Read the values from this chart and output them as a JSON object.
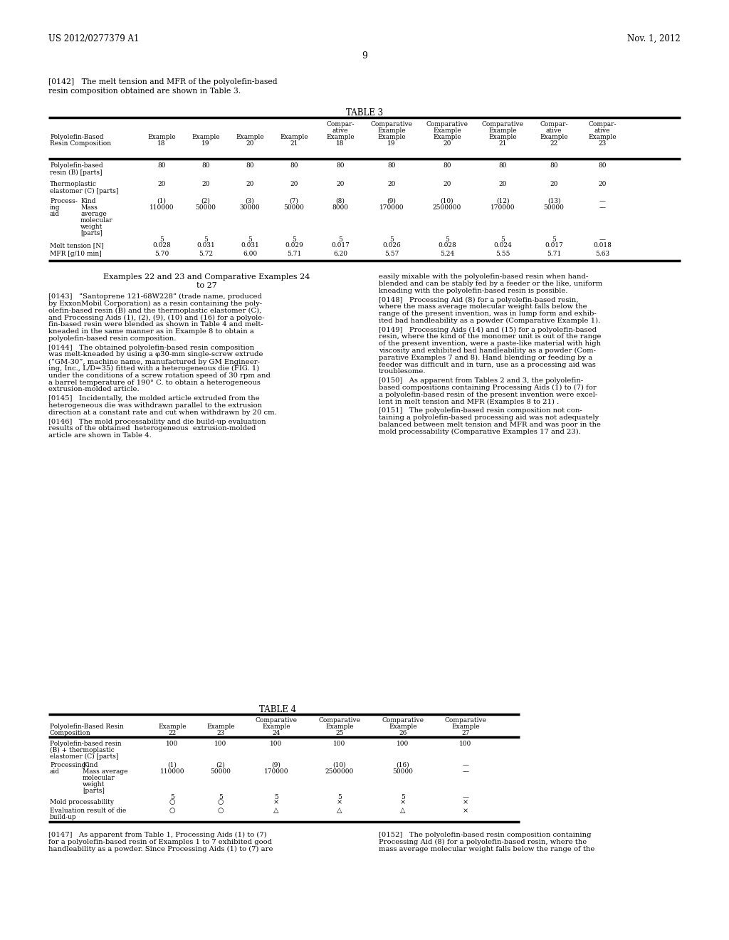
{
  "page_number": "9",
  "header_left": "US 2012/0277379 A1",
  "header_right": "Nov. 1, 2012",
  "para_142_line1": "[0142]   The melt tension and MFR of the polyolefin-based",
  "para_142_line2": "resin composition obtained are shown in Table 3.",
  "table3_title": "TABLE 3",
  "table3_col_headers_line1": [
    "",
    "",
    "",
    "",
    "",
    "Compar-",
    "Comparative",
    "Comparative",
    "Comparative",
    "Compar-",
    "Compar-"
  ],
  "table3_col_headers_line2": [
    "",
    "",
    "",
    "",
    "",
    "ative",
    "Example",
    "Example",
    "Example",
    "ative",
    "ative"
  ],
  "table3_col_headers_line3": [
    "Polyolefin-Based",
    "Example",
    "Example",
    "Example",
    "Example",
    "Example",
    "Example",
    "Example",
    "Example",
    "Example",
    "Example"
  ],
  "table3_col_headers_line4": [
    "Resin Composition",
    "18",
    "19",
    "20",
    "21",
    "18",
    "19",
    "20",
    "21",
    "22",
    "23"
  ],
  "section_title_line1": "Examples 22 and 23 and Comparative Examples 24",
  "section_title_line2": "to 27",
  "table4_title": "TABLE 4",
  "background_color": "#ffffff"
}
